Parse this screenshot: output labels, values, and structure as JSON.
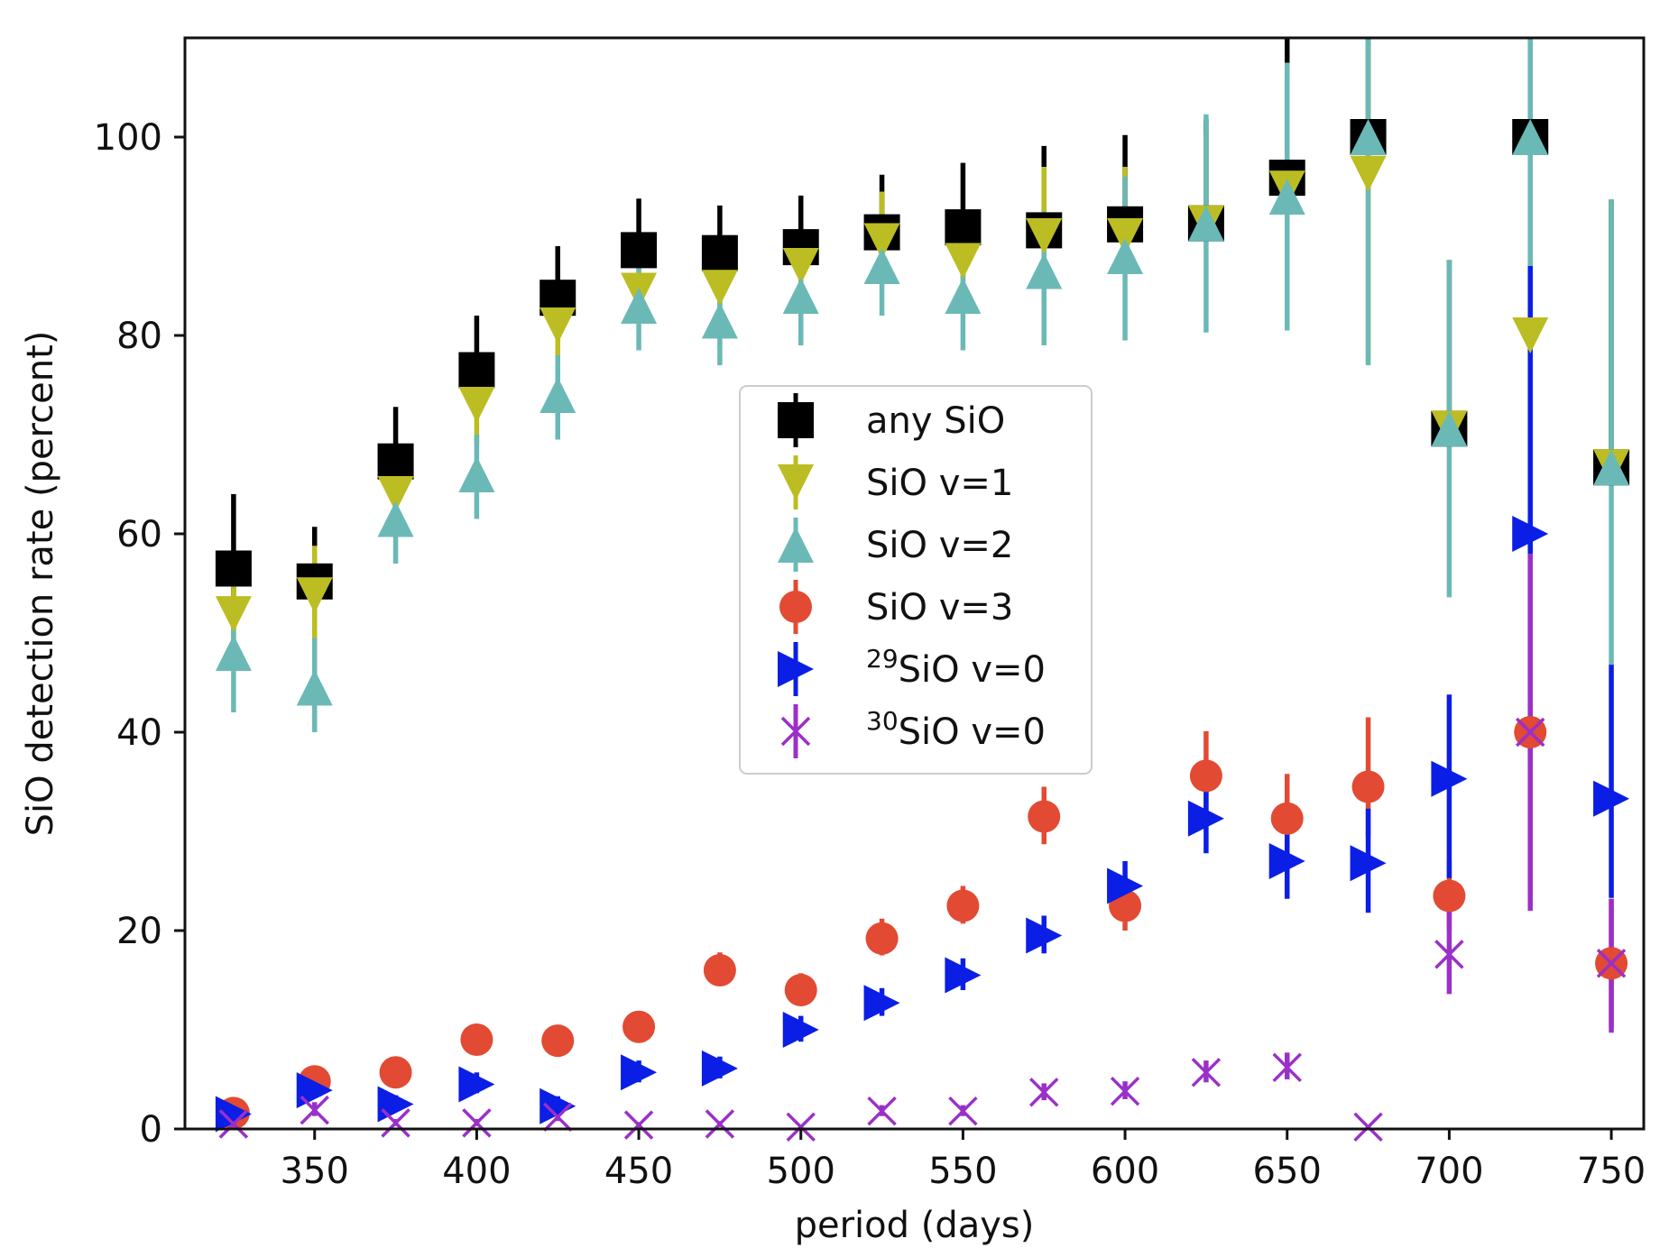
{
  "chart_data": {
    "type": "scatter",
    "title": "",
    "xlabel": "period (days)",
    "ylabel": "SiO detection rate (percent)",
    "xlim": [
      310,
      760
    ],
    "ylim": [
      0,
      110
    ],
    "xticks": [
      350,
      400,
      450,
      500,
      550,
      600,
      650,
      700,
      750
    ],
    "yticks": [
      0,
      20,
      40,
      60,
      80,
      100
    ],
    "legend_position": "center",
    "x": [
      325,
      350,
      375,
      400,
      425,
      450,
      475,
      500,
      525,
      550,
      575,
      600,
      625,
      650,
      675,
      700,
      725,
      750
    ],
    "series": [
      {
        "name": "any SiO",
        "label_sup": "",
        "label_main": "any SiO",
        "marker": "square",
        "color": "#000000",
        "values": [
          56.5,
          55.2,
          67.3,
          76.5,
          83.8,
          88.6,
          88.3,
          88.9,
          90.4,
          90.9,
          90.6,
          91.2,
          91.3,
          95.9,
          100,
          70.6,
          100,
          66.7
        ],
        "yerr_lower": [
          4.0,
          1.5,
          1.5,
          1.5,
          1.2,
          1.2,
          1.2,
          1.2,
          1.0,
          1.0,
          1.0,
          1.0,
          1.0,
          1.5,
          0,
          0,
          0,
          0
        ],
        "yerr_upper": [
          7.5,
          5.5,
          5.5,
          5.5,
          5.2,
          5.2,
          4.8,
          5.2,
          5.8,
          6.5,
          8.5,
          9.0,
          10.5,
          14.5,
          10,
          17,
          10,
          27
        ]
      },
      {
        "name": "SiO v=1",
        "label_sup": "",
        "label_main": "SiO v=1",
        "marker": "triangle-down",
        "color": "#bcbd22",
        "values": [
          51.9,
          53.8,
          64.0,
          73.0,
          81.0,
          84.5,
          84.8,
          87.0,
          89.5,
          87.5,
          90.0,
          90.0,
          91.3,
          94.8,
          96.3,
          70.6,
          80.0,
          66.7
        ],
        "yerr_lower": [
          5.0,
          6.5,
          3.5,
          4.0,
          3.0,
          2.5,
          2.5,
          2.2,
          2.0,
          2.2,
          2.0,
          2.0,
          2.0,
          2.5,
          19.0,
          0,
          0,
          0
        ],
        "yerr_upper": [
          5.5,
          5.0,
          4.5,
          4.2,
          3.5,
          3.0,
          3.0,
          3.0,
          5.0,
          5.0,
          7.0,
          7.0,
          9.0,
          11.0,
          13.0,
          17.0,
          20.0,
          27.0
        ]
      },
      {
        "name": "SiO v=2",
        "label_sup": "",
        "label_main": "SiO v=2",
        "marker": "triangle-up",
        "color": "#6bb9b6",
        "values": [
          48.0,
          44.5,
          61.5,
          66.0,
          74.0,
          83.0,
          81.5,
          84.0,
          87.0,
          84.0,
          86.5,
          88.0,
          91.3,
          94.0,
          100,
          70.6,
          100,
          66.7
        ],
        "yerr_lower": [
          6.0,
          4.5,
          4.5,
          4.5,
          4.5,
          4.5,
          4.5,
          5.0,
          5.0,
          5.5,
          7.5,
          8.5,
          11.0,
          13.5,
          23.0,
          17.0,
          13.0,
          20.0
        ],
        "yerr_upper": [
          5.0,
          5.0,
          4.0,
          4.0,
          4.0,
          4.0,
          4.0,
          3.5,
          4.0,
          5.5,
          6.0,
          8.0,
          11.0,
          13.5,
          10.0,
          17.0,
          10.0,
          27.0
        ]
      },
      {
        "name": "SiO v=3",
        "label_sup": "",
        "label_main": "SiO v=3",
        "marker": "circle",
        "color": "#e24a33",
        "values": [
          1.6,
          4.8,
          5.7,
          9.0,
          8.9,
          10.3,
          16.0,
          14.0,
          19.2,
          22.5,
          31.5,
          22.5,
          35.6,
          31.3,
          34.5,
          23.5,
          40.0,
          16.7
        ],
        "yerr_lower": [
          0.8,
          1.0,
          1.0,
          1.2,
          1.2,
          1.2,
          1.5,
          1.5,
          1.7,
          1.8,
          2.8,
          2.5,
          4.0,
          4.0,
          5.0,
          3.5,
          17.0,
          6.5
        ],
        "yerr_upper": [
          1.0,
          1.2,
          1.2,
          1.5,
          1.4,
          1.5,
          1.8,
          1.7,
          2.0,
          2.0,
          3.0,
          3.0,
          4.5,
          4.5,
          7.0,
          3.5,
          20.0,
          6.5
        ]
      },
      {
        "name": "29SiO v=0",
        "label_sup": "29",
        "label_main": "SiO v=0",
        "marker": "triangle-right",
        "color": "#0a1ee6",
        "values": [
          1.5,
          3.9,
          2.5,
          4.5,
          2.3,
          5.7,
          6.1,
          10.0,
          12.7,
          15.5,
          19.5,
          24.5,
          31.3,
          27.0,
          26.8,
          35.3,
          60.0,
          33.3
        ],
        "yerr_lower": [
          0.6,
          0.8,
          0.7,
          0.9,
          0.8,
          1.0,
          1.0,
          1.2,
          1.3,
          1.5,
          1.8,
          2.2,
          3.5,
          3.8,
          5.0,
          10.0,
          23.0,
          10.0
        ],
        "yerr_upper": [
          0.8,
          1.0,
          0.9,
          1.2,
          1.0,
          1.2,
          1.2,
          1.4,
          1.5,
          1.7,
          2.0,
          2.5,
          4.0,
          4.5,
          5.5,
          8.5,
          27.0,
          13.5
        ]
      },
      {
        "name": "30SiO v=0",
        "label_sup": "30",
        "label_main": "SiO v=0",
        "marker": "x",
        "color": "#9b30c8",
        "values": [
          0.5,
          1.9,
          0.6,
          0.6,
          1.2,
          0.4,
          0.5,
          0.2,
          1.8,
          1.8,
          3.7,
          3.8,
          5.7,
          6.2,
          0.2,
          17.6,
          40.0,
          16.7
        ],
        "yerr_lower": [
          0.3,
          0.6,
          0.3,
          0.3,
          0.4,
          0.2,
          0.3,
          0.1,
          0.5,
          0.5,
          0.8,
          0.8,
          1.0,
          1.2,
          0.1,
          4.0,
          18.0,
          7.0
        ],
        "yerr_upper": [
          0.4,
          0.8,
          0.4,
          0.4,
          0.5,
          0.3,
          0.3,
          0.2,
          0.6,
          0.6,
          0.9,
          1.0,
          1.2,
          1.5,
          0.2,
          5.0,
          18.0,
          6.5
        ]
      }
    ]
  }
}
